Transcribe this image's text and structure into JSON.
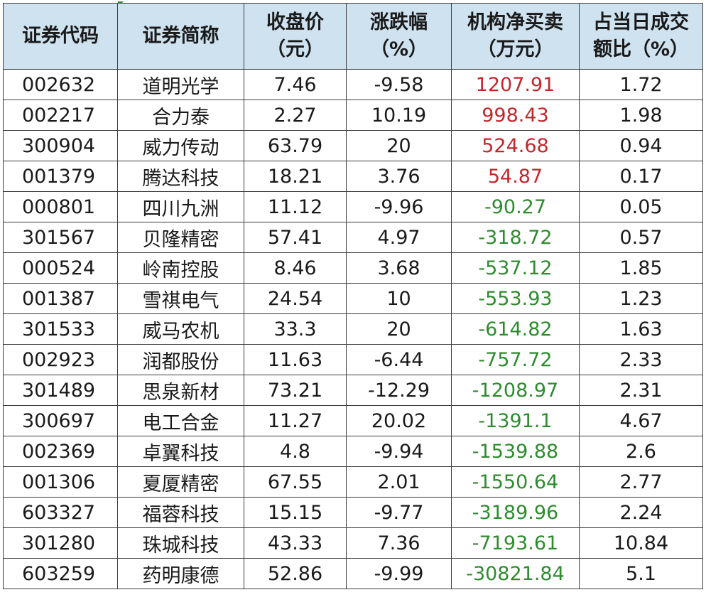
{
  "headers": [
    {
      "lines": [
        "证券代码"
      ]
    },
    {
      "lines": [
        "证券简称"
      ]
    },
    {
      "lines": [
        "收盘价",
        "（元）"
      ]
    },
    {
      "lines": [
        "涨跌幅",
        "（%）"
      ]
    },
    {
      "lines": [
        "机构净买卖",
        "（万元）"
      ]
    },
    {
      "lines": [
        "占当日成交",
        "额比（%）"
      ]
    }
  ],
  "rows": [
    {
      "code": "002632",
      "name": "道明光学",
      "close": "7.46",
      "change": "-9.58",
      "net": "1207.91",
      "ratio": "1.72",
      "net_sign": "pos"
    },
    {
      "code": "002217",
      "name": "合力泰",
      "close": "2.27",
      "change": "10.19",
      "net": "998.43",
      "ratio": "1.98",
      "net_sign": "pos"
    },
    {
      "code": "300904",
      "name": "威力传动",
      "close": "63.79",
      "change": "20",
      "net": "524.68",
      "ratio": "0.94",
      "net_sign": "pos"
    },
    {
      "code": "001379",
      "name": "腾达科技",
      "close": "18.21",
      "change": "3.76",
      "net": "54.87",
      "ratio": "0.17",
      "net_sign": "pos"
    },
    {
      "code": "000801",
      "name": "四川九洲",
      "close": "11.12",
      "change": "-9.96",
      "net": "-90.27",
      "ratio": "0.05",
      "net_sign": "neg"
    },
    {
      "code": "301567",
      "name": "贝隆精密",
      "close": "57.41",
      "change": "4.97",
      "net": "-318.72",
      "ratio": "0.57",
      "net_sign": "neg"
    },
    {
      "code": "000524",
      "name": "岭南控股",
      "close": "8.46",
      "change": "3.68",
      "net": "-537.12",
      "ratio": "1.85",
      "net_sign": "neg"
    },
    {
      "code": "001387",
      "name": "雪祺电气",
      "close": "24.54",
      "change": "10",
      "net": "-553.93",
      "ratio": "1.23",
      "net_sign": "neg"
    },
    {
      "code": "301533",
      "name": "威马农机",
      "close": "33.3",
      "change": "20",
      "net": "-614.82",
      "ratio": "1.63",
      "net_sign": "neg"
    },
    {
      "code": "002923",
      "name": "润都股份",
      "close": "11.63",
      "change": "-6.44",
      "net": "-757.72",
      "ratio": "2.33",
      "net_sign": "neg"
    },
    {
      "code": "301489",
      "name": "思泉新材",
      "close": "73.21",
      "change": "-12.29",
      "net": "-1208.97",
      "ratio": "2.31",
      "net_sign": "neg"
    },
    {
      "code": "300697",
      "name": "电工合金",
      "close": "11.27",
      "change": "20.02",
      "net": "-1391.1",
      "ratio": "4.67",
      "net_sign": "neg"
    },
    {
      "code": "002369",
      "name": "卓翼科技",
      "close": "4.8",
      "change": "-9.94",
      "net": "-1539.88",
      "ratio": "2.6",
      "net_sign": "neg"
    },
    {
      "code": "001306",
      "name": "夏厦精密",
      "close": "67.55",
      "change": "2.01",
      "net": "-1550.64",
      "ratio": "2.77",
      "net_sign": "neg"
    },
    {
      "code": "603327",
      "name": "福蓉科技",
      "close": "15.15",
      "change": "-9.77",
      "net": "-3189.96",
      "ratio": "2.24",
      "net_sign": "neg"
    },
    {
      "code": "301280",
      "name": "珠城科技",
      "close": "43.33",
      "change": "7.36",
      "net": "-7193.61",
      "ratio": "10.84",
      "net_sign": "neg"
    },
    {
      "code": "603259",
      "name": "药明康德",
      "close": "52.86",
      "change": "-9.99",
      "net": "-30821.84",
      "ratio": "5.1",
      "net_sign": "neg"
    }
  ],
  "colors": {
    "header_bg": "#cfe2f0",
    "positive": "#c2272d",
    "negative": "#2e8b2e",
    "border": "#3c3c3c"
  }
}
